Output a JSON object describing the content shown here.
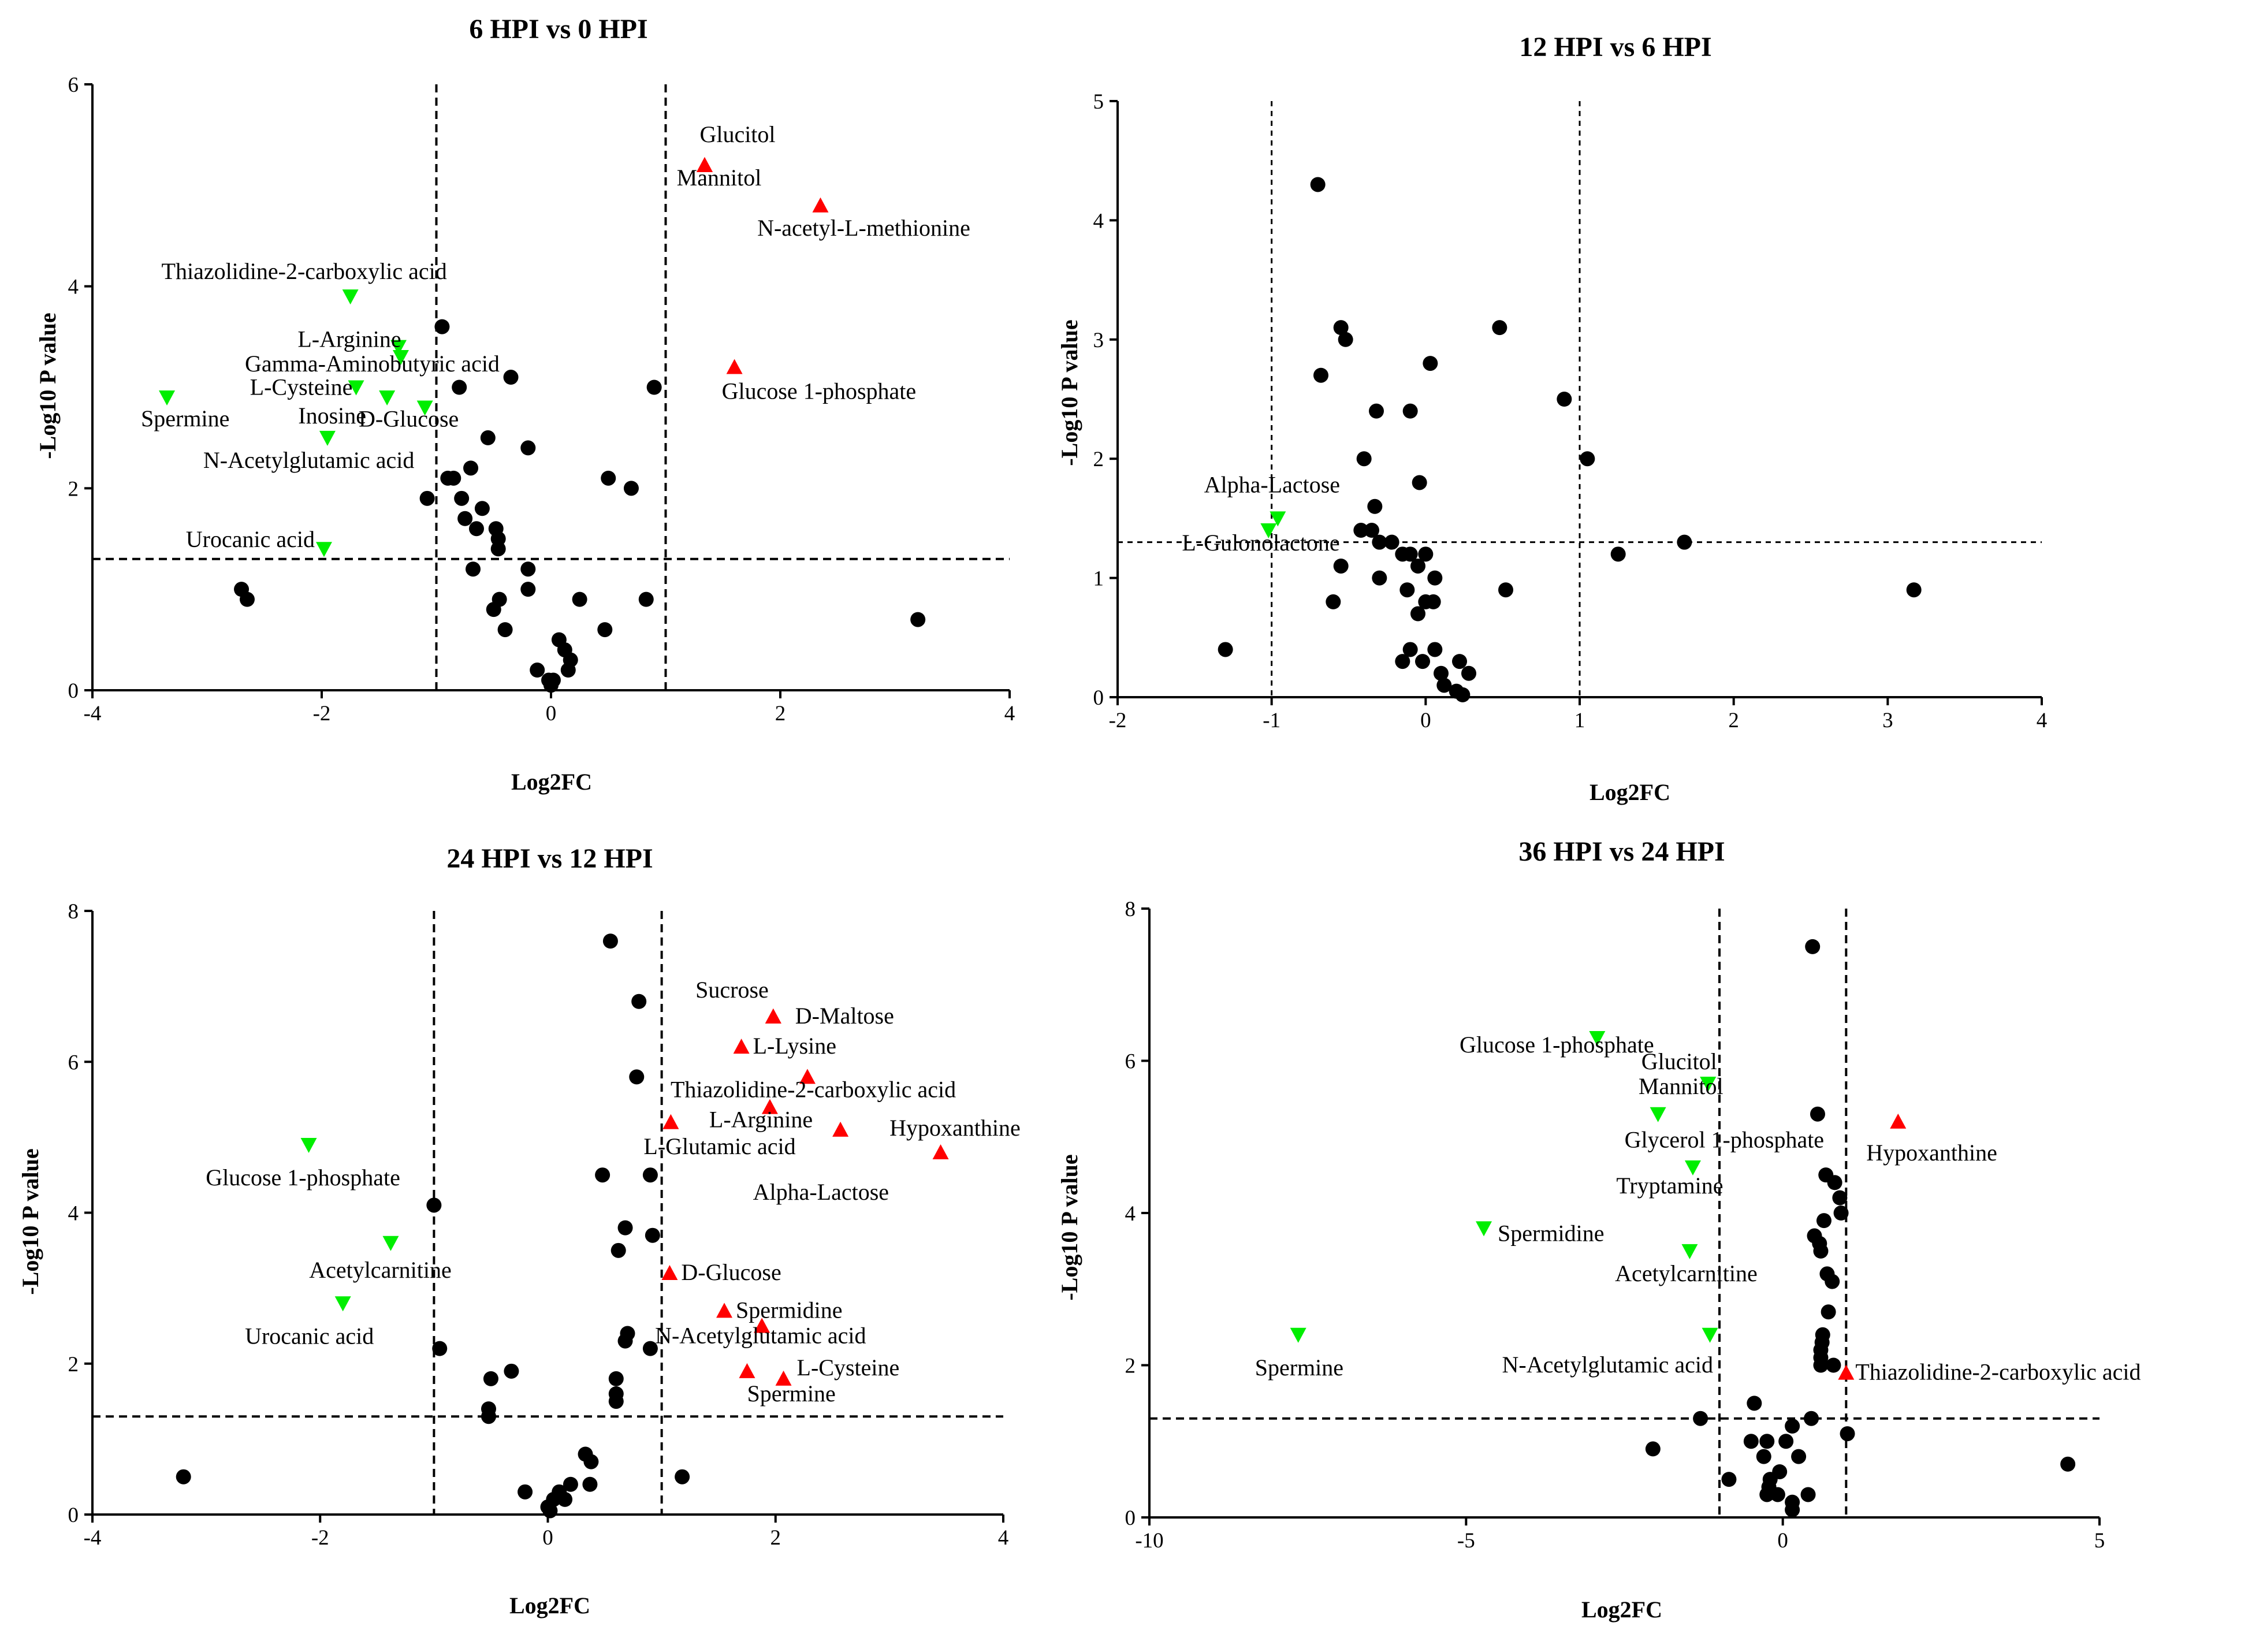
{
  "colors": {
    "non_significant": "#000000",
    "up": "#ff0000",
    "down": "#00ee00"
  },
  "chart_data": [
    {
      "type": "scatter",
      "title": "6 HPI vs 0 HPI",
      "xlabel": "Log2FC",
      "ylabel": "-Log10 P value",
      "xlim": [
        -4,
        4
      ],
      "ylim": [
        0,
        6
      ],
      "xticks": [
        -4,
        -2,
        0,
        2,
        4
      ],
      "yticks": [
        0,
        2,
        4,
        6
      ],
      "xthresholds": [
        -1,
        1
      ],
      "ythreshold": 1.3,
      "up": [
        {
          "name": "Glucitol",
          "x": 1.34,
          "y": 5.2
        },
        {
          "name": "Mannitol",
          "x": 1.34,
          "y": 5.2
        },
        {
          "name": "N-acetyl-L-methionine",
          "x": 2.35,
          "y": 4.8
        },
        {
          "name": "Glucose 1-phosphate",
          "x": 1.6,
          "y": 3.2
        }
      ],
      "down": [
        {
          "name": "Thiazolidine-2-carboxylic acid",
          "x": -1.75,
          "y": 3.9
        },
        {
          "name": "L-Arginine",
          "x": -1.33,
          "y": 3.4
        },
        {
          "name": "Gamma-Aminobutyric acid",
          "x": -1.31,
          "y": 3.3
        },
        {
          "name": "L-Cysteine",
          "x": -1.7,
          "y": 3.0
        },
        {
          "name": "Spermine",
          "x": -3.35,
          "y": 2.9
        },
        {
          "name": "Inosine",
          "x": -1.43,
          "y": 2.9
        },
        {
          "name": "D-Glucose",
          "x": -1.1,
          "y": 2.8
        },
        {
          "name": "N-Acetylglutamic acid",
          "x": -1.95,
          "y": 2.5
        },
        {
          "name": "Urocanic acid",
          "x": -1.98,
          "y": 1.4
        }
      ],
      "ns": [
        [
          -0.95,
          3.6
        ],
        [
          -0.8,
          3.0
        ],
        [
          -0.35,
          3.1
        ],
        [
          0.9,
          3.0
        ],
        [
          -0.55,
          2.5
        ],
        [
          -0.2,
          2.4
        ],
        [
          0.5,
          2.1
        ],
        [
          0.7,
          2.0
        ],
        [
          -0.9,
          2.1
        ],
        [
          -0.85,
          2.1
        ],
        [
          -0.7,
          2.2
        ],
        [
          -1.08,
          1.9
        ],
        [
          -0.78,
          1.9
        ],
        [
          -0.6,
          1.8
        ],
        [
          -0.75,
          1.7
        ],
        [
          -0.65,
          1.6
        ],
        [
          -0.48,
          1.6
        ],
        [
          -0.46,
          1.5
        ],
        [
          -0.46,
          1.4
        ],
        [
          -0.2,
          1.2
        ],
        [
          -0.68,
          1.2
        ],
        [
          -0.2,
          1.0
        ],
        [
          -0.45,
          0.9
        ],
        [
          0.25,
          0.9
        ],
        [
          0.83,
          0.9
        ],
        [
          -0.5,
          0.8
        ],
        [
          -0.4,
          0.6
        ],
        [
          0.47,
          0.6
        ],
        [
          3.2,
          0.7
        ],
        [
          -2.7,
          1.0
        ],
        [
          -2.65,
          0.9
        ],
        [
          0.07,
          0.5
        ],
        [
          0.12,
          0.4
        ],
        [
          0.17,
          0.3
        ],
        [
          0.15,
          0.2
        ],
        [
          -0.12,
          0.2
        ],
        [
          -0.02,
          0.1
        ],
        [
          0.02,
          0.1
        ],
        [
          0,
          0.05
        ]
      ]
    },
    {
      "type": "scatter",
      "title": "12 HPI vs 6 HPI",
      "xlabel": "Log2FC",
      "ylabel": "-Log10 P value",
      "xlim": [
        -2,
        4
      ],
      "ylim": [
        0,
        5
      ],
      "xticks": [
        -2,
        -1,
        0,
        1,
        2,
        3,
        4
      ],
      "yticks": [
        0,
        1,
        2,
        3,
        4,
        5
      ],
      "xthresholds": [
        -1,
        1
      ],
      "ythreshold": 1.3,
      "up": [],
      "down": [
        {
          "name": "Alpha-Lactose",
          "x": -0.96,
          "y": 1.5
        },
        {
          "name": "L-Gulonolactone",
          "x": -1.02,
          "y": 1.4
        }
      ],
      "ns": [
        [
          -0.7,
          4.3
        ],
        [
          -0.55,
          3.1
        ],
        [
          -0.52,
          3.0
        ],
        [
          0.48,
          3.1
        ],
        [
          -0.68,
          2.7
        ],
        [
          0.03,
          2.8
        ],
        [
          0.9,
          2.5
        ],
        [
          -0.32,
          2.4
        ],
        [
          -0.1,
          2.4
        ],
        [
          1.05,
          2.0
        ],
        [
          -0.4,
          2.0
        ],
        [
          -0.42,
          1.4
        ],
        [
          -0.04,
          1.8
        ],
        [
          -0.33,
          1.6
        ],
        [
          -0.35,
          1.4
        ],
        [
          -0.3,
          1.3
        ],
        [
          -0.22,
          1.3
        ],
        [
          -0.1,
          1.2
        ],
        [
          -0.05,
          1.1
        ],
        [
          0.0,
          1.2
        ],
        [
          -0.15,
          1.2
        ],
        [
          1.25,
          1.2
        ],
        [
          1.68,
          1.3
        ],
        [
          3.17,
          0.9
        ],
        [
          -0.55,
          1.1
        ],
        [
          -0.3,
          1.0
        ],
        [
          0.06,
          1.0
        ],
        [
          -0.12,
          0.9
        ],
        [
          0.52,
          0.9
        ],
        [
          0.0,
          0.8
        ],
        [
          0.05,
          0.8
        ],
        [
          -0.6,
          0.8
        ],
        [
          -0.05,
          0.7
        ],
        [
          -1.3,
          0.4
        ],
        [
          -0.1,
          0.4
        ],
        [
          0.06,
          0.4
        ],
        [
          -0.15,
          0.3
        ],
        [
          -0.02,
          0.3
        ],
        [
          0.22,
          0.3
        ],
        [
          0.28,
          0.2
        ],
        [
          0.1,
          0.2
        ],
        [
          0.12,
          0.1
        ],
        [
          0.2,
          0.05
        ],
        [
          0.24,
          0.02
        ]
      ]
    },
    {
      "type": "scatter",
      "title": "24 HPI vs 12 HPI",
      "xlabel": "Log2FC",
      "ylabel": "-Log10 P value",
      "xlim": [
        -4,
        4
      ],
      "ylim": [
        0,
        8
      ],
      "xticks": [
        -4,
        -2,
        0,
        2,
        4
      ],
      "yticks": [
        0,
        2,
        4,
        6,
        8
      ],
      "xthresholds": [
        -1,
        1
      ],
      "ythreshold": 1.3,
      "up": [
        {
          "name": "Sucrose",
          "x": 1.98,
          "y": 6.6
        },
        {
          "name": "D-Maltose",
          "x": 1.98,
          "y": 6.6
        },
        {
          "name": "L-Lysine",
          "x": 1.7,
          "y": 6.2
        },
        {
          "name": "Thiazolidine-2-carboxylic acid",
          "x": 2.28,
          "y": 5.8
        },
        {
          "name": "L-Arginine",
          "x": 1.95,
          "y": 5.4
        },
        {
          "name": "L-Glutamic acid",
          "x": 1.08,
          "y": 5.2
        },
        {
          "name": "Hypoxanthine",
          "x": 2.57,
          "y": 5.1
        },
        {
          "name": "Alpha-Lactose",
          "x": 3.45,
          "y": 4.8
        },
        {
          "name": "D-Glucose",
          "x": 1.07,
          "y": 3.2
        },
        {
          "name": "Spermidine",
          "x": 1.55,
          "y": 2.7
        },
        {
          "name": "N-Acetylglutamic acid",
          "x": 1.88,
          "y": 2.5
        },
        {
          "name": "L-Cysteine",
          "x": 2.07,
          "y": 1.8
        },
        {
          "name": "Spermine",
          "x": 1.75,
          "y": 1.9
        }
      ],
      "down": [
        {
          "name": "Glucose 1-phosphate",
          "x": -2.1,
          "y": 4.9
        },
        {
          "name": "Acetylcarnitine",
          "x": -1.38,
          "y": 3.6
        },
        {
          "name": "Urocanic acid",
          "x": -1.8,
          "y": 2.8
        }
      ],
      "ns": [
        [
          0.55,
          7.6
        ],
        [
          0.8,
          6.8
        ],
        [
          0.78,
          5.8
        ],
        [
          0.48,
          4.5
        ],
        [
          0.9,
          4.5
        ],
        [
          -1.0,
          4.1
        ],
        [
          0.68,
          3.8
        ],
        [
          0.92,
          3.7
        ],
        [
          0.62,
          3.5
        ],
        [
          0.7,
          2.4
        ],
        [
          0.68,
          2.3
        ],
        [
          0.9,
          2.2
        ],
        [
          -0.95,
          2.2
        ],
        [
          -0.32,
          1.9
        ],
        [
          -0.5,
          1.8
        ],
        [
          0.6,
          1.8
        ],
        [
          0.6,
          1.6
        ],
        [
          0.6,
          1.5
        ],
        [
          -0.52,
          1.4
        ],
        [
          -0.52,
          1.3
        ],
        [
          -3.2,
          0.5
        ],
        [
          1.18,
          0.5
        ],
        [
          0.33,
          0.8
        ],
        [
          0.38,
          0.7
        ],
        [
          0.37,
          0.4
        ],
        [
          0.2,
          0.4
        ],
        [
          0.1,
          0.3
        ],
        [
          -0.2,
          0.3
        ],
        [
          0.15,
          0.2
        ],
        [
          0.05,
          0.2
        ],
        [
          0.0,
          0.1
        ],
        [
          0.02,
          0.05
        ]
      ]
    },
    {
      "type": "scatter",
      "title": "36 HPI vs 24 HPI",
      "xlabel": "Log2FC",
      "ylabel": "-Log10 P value",
      "xlim": [
        -10,
        5
      ],
      "ylim": [
        0,
        8
      ],
      "xticks": [
        -10,
        -5,
        0,
        5
      ],
      "yticks": [
        0,
        2,
        4,
        6,
        8
      ],
      "xthresholds": [
        -1,
        1
      ],
      "ythreshold": 1.3,
      "up": [
        {
          "name": "Hypoxanthine",
          "x": 1.82,
          "y": 5.2
        },
        {
          "name": "Thiazolidine-2-carboxylic acid",
          "x": 1.0,
          "y": 1.9
        }
      ],
      "down": [
        {
          "name": "Glucose 1-phosphate",
          "x": -2.93,
          "y": 6.3
        },
        {
          "name": "Glucitol",
          "x": -1.18,
          "y": 5.7
        },
        {
          "name": "Mannitol",
          "x": -1.18,
          "y": 5.7
        },
        {
          "name": "Glycerol 1-phosphate",
          "x": -1.97,
          "y": 5.3
        },
        {
          "name": "Tryptamine",
          "x": -1.42,
          "y": 4.6
        },
        {
          "name": "Spermidine",
          "x": -4.72,
          "y": 3.8
        },
        {
          "name": "Acetylcarnitine",
          "x": -1.47,
          "y": 3.5
        },
        {
          "name": "N-Acetylglutamic acid",
          "x": -1.15,
          "y": 2.4
        },
        {
          "name": "Spermine",
          "x": -7.65,
          "y": 2.4
        }
      ],
      "ns": [
        [
          0.47,
          7.5
        ],
        [
          0.55,
          5.3
        ],
        [
          0.68,
          4.5
        ],
        [
          0.82,
          4.4
        ],
        [
          0.9,
          4.2
        ],
        [
          0.92,
          4.0
        ],
        [
          0.65,
          3.9
        ],
        [
          0.5,
          3.7
        ],
        [
          0.58,
          3.6
        ],
        [
          0.6,
          3.5
        ],
        [
          0.7,
          3.2
        ],
        [
          0.78,
          3.1
        ],
        [
          0.72,
          2.7
        ],
        [
          0.63,
          2.4
        ],
        [
          0.62,
          2.3
        ],
        [
          0.6,
          2.2
        ],
        [
          0.6,
          2.1
        ],
        [
          0.6,
          2.0
        ],
        [
          0.8,
          2.0
        ],
        [
          -0.45,
          1.5
        ],
        [
          -1.3,
          1.3
        ],
        [
          0.45,
          1.3
        ],
        [
          0.15,
          1.2
        ],
        [
          1.02,
          1.1
        ],
        [
          -2.05,
          0.9
        ],
        [
          -0.5,
          1.0
        ],
        [
          -0.25,
          1.0
        ],
        [
          0.05,
          1.0
        ],
        [
          -0.3,
          0.8
        ],
        [
          0.25,
          0.8
        ],
        [
          -0.05,
          0.6
        ],
        [
          -0.85,
          0.5
        ],
        [
          -0.2,
          0.5
        ],
        [
          -0.22,
          0.4
        ],
        [
          -0.25,
          0.3
        ],
        [
          -0.08,
          0.3
        ],
        [
          0.4,
          0.3
        ],
        [
          0.15,
          0.2
        ],
        [
          0.15,
          0.1
        ],
        [
          4.5,
          0.7
        ]
      ]
    }
  ]
}
